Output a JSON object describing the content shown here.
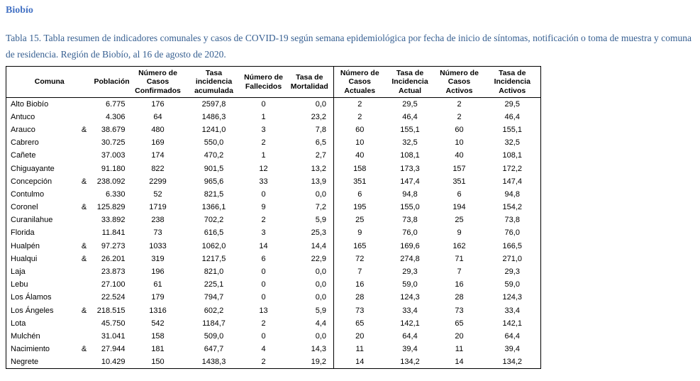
{
  "page": {
    "section_title": "Biobío",
    "caption": "Tabla 15. Tabla resumen de indicadores comunales y casos de COVID-19 según semana epidemiológica por fecha de inicio de síntomas, notificación o toma de muestra y comuna de residencia. Región de Biobío, al 16 de agosto de 2020.",
    "colors": {
      "section_title": "#4472C4",
      "caption": "#365F91",
      "table_border": "#000000"
    }
  },
  "table": {
    "headers": [
      "Comuna",
      "Población",
      "Número de Casos Confirmados",
      "Tasa incidencia acumulada",
      "Número de Fallecidos",
      "Tasa de Mortalidad",
      "Número de Casos Actuales",
      "Tasa de Incidencia Actual",
      "Número de Casos Activos",
      "Tasa de Incidencia Activos"
    ],
    "priority_marker_symbol": "&",
    "rows": [
      {
        "cells": [
          "Alto Biobío",
          "",
          "6.775",
          "176",
          "2597,8",
          "0",
          "0,0",
          "2",
          "29,5",
          "2",
          "29,5"
        ]
      },
      {
        "cells": [
          "Antuco",
          "",
          "4.306",
          "64",
          "1486,3",
          "1",
          "23,2",
          "2",
          "46,4",
          "2",
          "46,4"
        ]
      },
      {
        "cells": [
          "Arauco",
          "&",
          "38.679",
          "480",
          "1241,0",
          "3",
          "7,8",
          "60",
          "155,1",
          "60",
          "155,1"
        ]
      },
      {
        "cells": [
          "Cabrero",
          "",
          "30.725",
          "169",
          "550,0",
          "2",
          "6,5",
          "10",
          "32,5",
          "10",
          "32,5"
        ]
      },
      {
        "cells": [
          "Cañete",
          "",
          "37.003",
          "174",
          "470,2",
          "1",
          "2,7",
          "40",
          "108,1",
          "40",
          "108,1"
        ]
      },
      {
        "cells": [
          "Chiguayante",
          "",
          "91.180",
          "822",
          "901,5",
          "12",
          "13,2",
          "158",
          "173,3",
          "157",
          "172,2"
        ]
      },
      {
        "cells": [
          "Concepción",
          "&",
          "238.092",
          "2299",
          "965,6",
          "33",
          "13,9",
          "351",
          "147,4",
          "351",
          "147,4"
        ]
      },
      {
        "cells": [
          "Contulmo",
          "",
          "6.330",
          "52",
          "821,5",
          "0",
          "0,0",
          "6",
          "94,8",
          "6",
          "94,8"
        ]
      },
      {
        "cells": [
          "Coronel",
          "&",
          "125.829",
          "1719",
          "1366,1",
          "9",
          "7,2",
          "195",
          "155,0",
          "194",
          "154,2"
        ]
      },
      {
        "cells": [
          "Curanilahue",
          "",
          "33.892",
          "238",
          "702,2",
          "2",
          "5,9",
          "25",
          "73,8",
          "25",
          "73,8"
        ]
      },
      {
        "cells": [
          "Florida",
          "",
          "11.841",
          "73",
          "616,5",
          "3",
          "25,3",
          "9",
          "76,0",
          "9",
          "76,0"
        ]
      },
      {
        "cells": [
          "Hualpén",
          "&",
          "97.273",
          "1033",
          "1062,0",
          "14",
          "14,4",
          "165",
          "169,6",
          "162",
          "166,5"
        ]
      },
      {
        "cells": [
          "Hualqui",
          "&",
          "26.201",
          "319",
          "1217,5",
          "6",
          "22,9",
          "72",
          "274,8",
          "71",
          "271,0"
        ]
      },
      {
        "cells": [
          "Laja",
          "",
          "23.873",
          "196",
          "821,0",
          "0",
          "0,0",
          "7",
          "29,3",
          "7",
          "29,3"
        ]
      },
      {
        "cells": [
          "Lebu",
          "",
          "27.100",
          "61",
          "225,1",
          "0",
          "0,0",
          "16",
          "59,0",
          "16",
          "59,0"
        ]
      },
      {
        "cells": [
          "Los Álamos",
          "",
          "22.524",
          "179",
          "794,7",
          "0",
          "0,0",
          "28",
          "124,3",
          "28",
          "124,3"
        ]
      },
      {
        "cells": [
          "Los Ángeles",
          "&",
          "218.515",
          "1316",
          "602,2",
          "13",
          "5,9",
          "73",
          "33,4",
          "73",
          "33,4"
        ]
      },
      {
        "cells": [
          "Lota",
          "",
          "45.750",
          "542",
          "1184,7",
          "2",
          "4,4",
          "65",
          "142,1",
          "65",
          "142,1"
        ]
      },
      {
        "cells": [
          "Mulchén",
          "",
          "31.041",
          "158",
          "509,0",
          "0",
          "0,0",
          "20",
          "64,4",
          "20",
          "64,4"
        ]
      },
      {
        "cells": [
          "Nacimiento",
          "&",
          "27.944",
          "181",
          "647,7",
          "4",
          "14,3",
          "11",
          "39,4",
          "11",
          "39,4"
        ]
      },
      {
        "cells": [
          "Negrete",
          "",
          "10.429",
          "150",
          "1438,3",
          "2",
          "19,2",
          "14",
          "134,2",
          "14",
          "134,2"
        ]
      }
    ]
  }
}
